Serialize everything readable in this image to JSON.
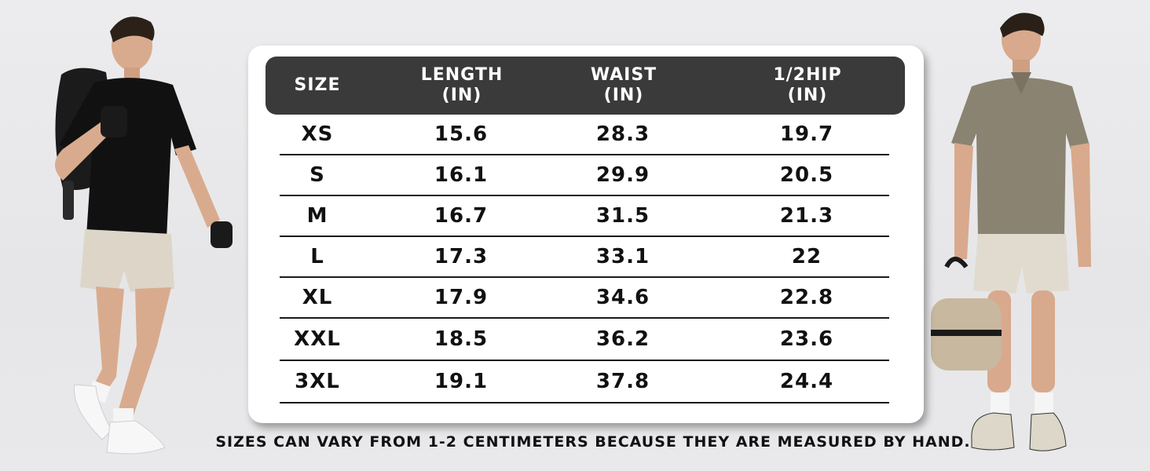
{
  "table": {
    "headers": [
      "SIZE",
      "LENGTH\n(IN)",
      "WAIST\n(IN)",
      "1/2HIP\n(IN)"
    ],
    "rows": [
      [
        "XS",
        "15.6",
        "28.3",
        "19.7"
      ],
      [
        "S",
        "16.1",
        "29.9",
        "20.5"
      ],
      [
        "M",
        "16.7",
        "31.5",
        "21.3"
      ],
      [
        "L",
        "17.3",
        "33.1",
        "22"
      ],
      [
        "XL",
        "17.9",
        "34.6",
        "22.8"
      ],
      [
        "XXL",
        "18.5",
        "36.2",
        "23.6"
      ],
      [
        "3XL",
        "19.1",
        "37.8",
        "24.4"
      ]
    ]
  },
  "note": "SIZES CAN VARY FROM 1-2 CENTIMETERS BECAUSE THEY ARE MEASURED BY HAND.",
  "colors": {
    "header_bg": "#3a3a3a",
    "card_bg": "#ffffff",
    "page_bg": "#e8e8ea",
    "shirt_left": "#111111",
    "shirt_right": "#8a8371",
    "shorts": "#ddd6c8"
  }
}
